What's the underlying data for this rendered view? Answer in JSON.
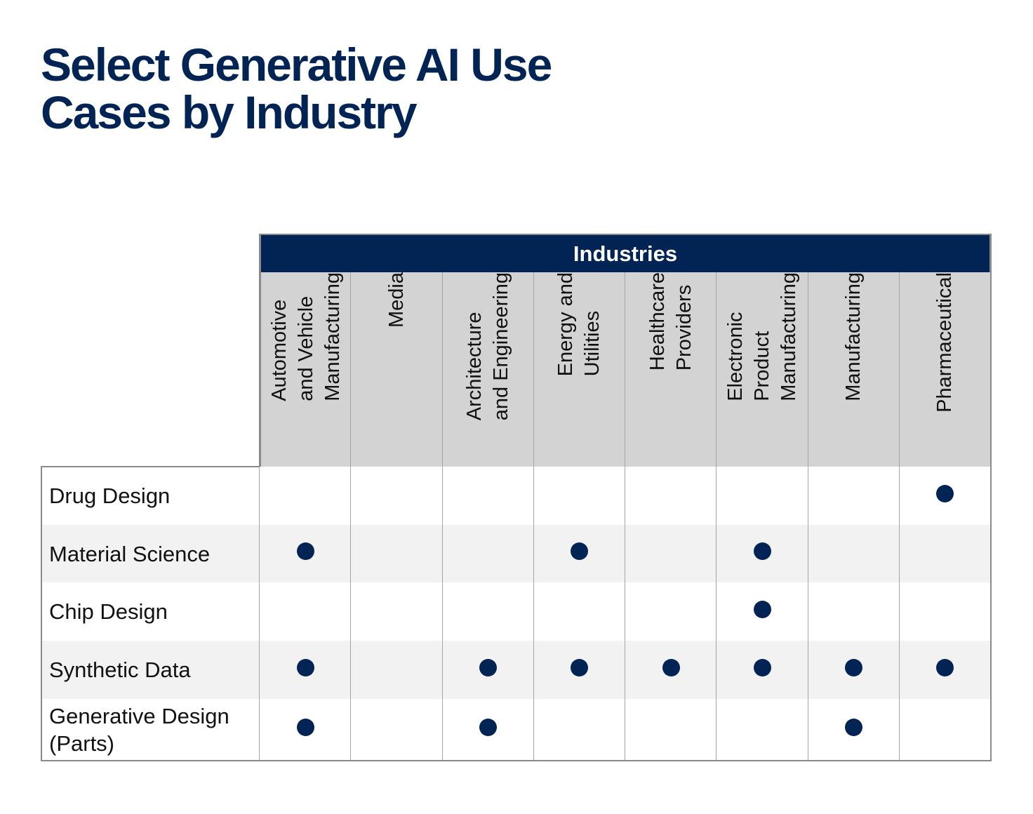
{
  "title_lines": [
    "Select Generative AI Use",
    "Cases by Industry"
  ],
  "table": {
    "group_header": "Industries",
    "columns": [
      [
        "Automotive",
        "and Vehicle",
        "Manufacturing"
      ],
      [
        "Media"
      ],
      [
        "Architecture",
        "and Engineering"
      ],
      [
        "Energy and",
        "Utilities"
      ],
      [
        "Healthcare",
        "Providers"
      ],
      [
        "Electronic",
        "Product",
        "Manufacturing"
      ],
      [
        "Manufacturing"
      ],
      [
        "Pharmaceutical"
      ]
    ],
    "rows": [
      {
        "label": [
          "Drug Design"
        ],
        "marks": [
          false,
          false,
          false,
          false,
          false,
          false,
          false,
          true
        ]
      },
      {
        "label": [
          "Material Science"
        ],
        "marks": [
          true,
          false,
          false,
          true,
          false,
          true,
          false,
          false
        ]
      },
      {
        "label": [
          "Chip Design"
        ],
        "marks": [
          false,
          false,
          false,
          false,
          false,
          true,
          false,
          false
        ]
      },
      {
        "label": [
          "Synthetic Data"
        ],
        "marks": [
          true,
          false,
          true,
          true,
          true,
          true,
          true,
          true
        ]
      },
      {
        "label": [
          "Generative Design",
          "(Parts)"
        ],
        "marks": [
          true,
          false,
          true,
          false,
          false,
          false,
          true,
          false
        ]
      }
    ]
  }
}
